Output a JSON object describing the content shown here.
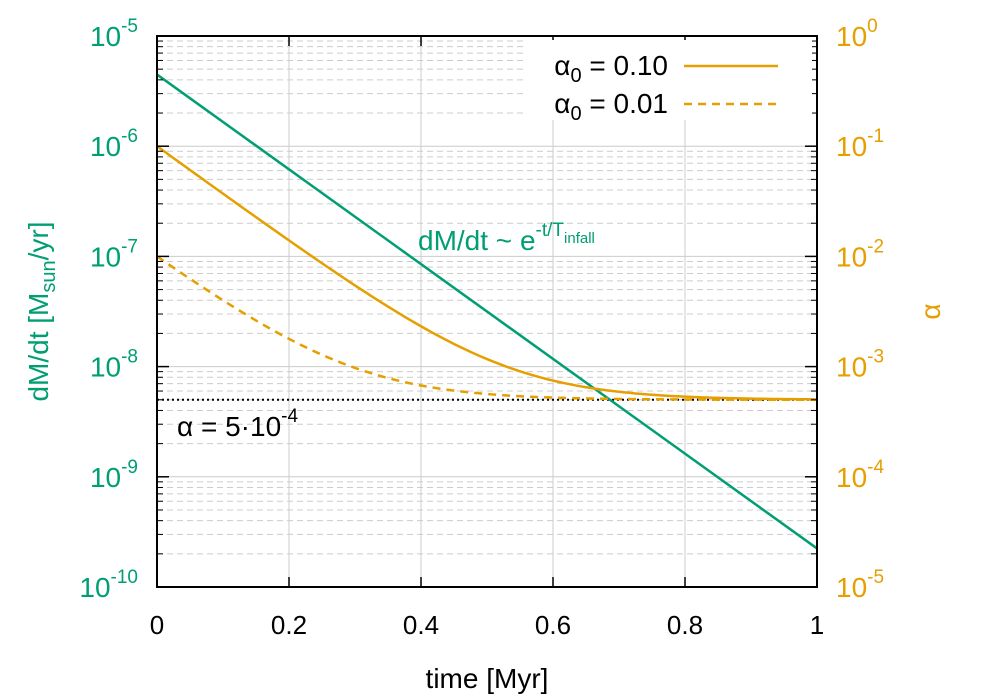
{
  "colors": {
    "left_axis": "#009e73",
    "right_axis": "#e69f00",
    "reference": "#000000",
    "grid": "#cccccc"
  },
  "chart_data": {
    "type": "line",
    "xlabel": "time [Myr]",
    "xlim": [
      0,
      1
    ],
    "x_ticks": [
      0,
      0.2,
      0.4,
      0.6,
      0.8,
      1
    ],
    "x_tick_labels": [
      "0",
      "0.2",
      "0.4",
      "0.6",
      "0.8",
      "1"
    ],
    "y_left": {
      "label_base": "dM/dt [M",
      "label_sub": "sun",
      "label_tail": "/yr]",
      "scale": "log",
      "ylim_exp": [
        -10,
        -5
      ],
      "tick_base": "10",
      "tick_exponents": [
        "-10",
        "-9",
        "-8",
        "-7",
        "-6",
        "-5"
      ]
    },
    "y_right": {
      "label": "α",
      "scale": "log",
      "ylim_exp": [
        -5,
        0
      ],
      "tick_base": "10",
      "tick_exponents": [
        "-5",
        "-4",
        "-3",
        "-2",
        "-1",
        "0"
      ]
    },
    "grid": true,
    "legend_placement": "top-right",
    "series": [
      {
        "name": "dM/dt",
        "axis": "left",
        "style": "solid",
        "x": [
          0,
          1
        ],
        "y_log10": [
          -5.35,
          -9.65
        ]
      },
      {
        "name": "α0 = 0.10",
        "legend_symbol": "α",
        "legend_sub": "0",
        "legend_value": " = 0.10",
        "axis": "right",
        "style": "solid",
        "alpha_inf": 0.0005,
        "alpha_0": 0.1,
        "t_decay": 0.1
      },
      {
        "name": "α0 = 0.01",
        "legend_symbol": "α",
        "legend_sub": "0",
        "legend_value": " = 0.01",
        "axis": "right",
        "style": "dashed",
        "alpha_inf": 0.0005,
        "alpha_0": 0.01,
        "t_decay": 0.1
      }
    ],
    "reference_line": {
      "axis": "right",
      "value": 0.0005,
      "style": "dotted",
      "label_base": "α = 5·10",
      "label_exp": "-4"
    },
    "annotation": {
      "base": "dM/dt ~ e",
      "exp_text": "-t/T",
      "exp_sub": "infall",
      "x": 0.4,
      "y_log10_left": -6.85
    }
  }
}
